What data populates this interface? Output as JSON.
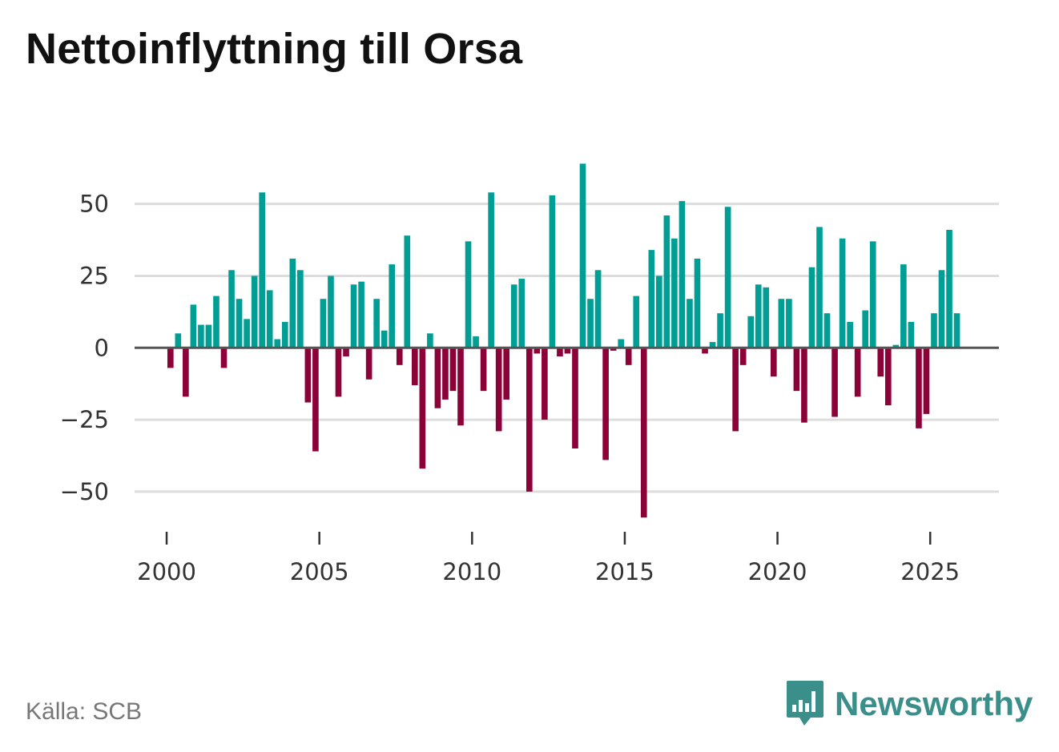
{
  "title": "Nettoinflyttning till Orsa",
  "source": "Källa: SCB",
  "brand": {
    "name": "Newsworthy",
    "icon": "newsworthy-logo-icon"
  },
  "colors": {
    "positive": "#009e94",
    "negative": "#8b0138",
    "grid": "#dddddd",
    "zero": "#555555",
    "brand": "#3a8f8a"
  },
  "chart_data": {
    "type": "bar",
    "title": "Nettoinflyttning till Orsa",
    "xlabel": "",
    "ylabel": "",
    "xlim": [
      1998.95,
      2027.25
    ],
    "ylim": [
      -62,
      68
    ],
    "yticks": [
      -50,
      -25,
      0,
      25,
      50
    ],
    "ytick_labels": [
      "−50",
      "−25",
      "0",
      "25",
      "50"
    ],
    "xticks": [
      2000,
      2005,
      2010,
      2015,
      2020,
      2025
    ],
    "xtick_labels": [
      "2000",
      "2005",
      "2010",
      "2015",
      "2020",
      "2025"
    ],
    "grid": true,
    "bar_width": 0.2,
    "x": [
      2000.125,
      2000.375,
      2000.625,
      2000.875,
      2001.125,
      2001.375,
      2001.625,
      2001.875,
      2002.125,
      2002.375,
      2002.625,
      2002.875,
      2003.125,
      2003.375,
      2003.625,
      2003.875,
      2004.125,
      2004.375,
      2004.625,
      2004.875,
      2005.125,
      2005.375,
      2005.625,
      2005.875,
      2006.125,
      2006.375,
      2006.625,
      2006.875,
      2007.125,
      2007.375,
      2007.625,
      2007.875,
      2008.125,
      2008.375,
      2008.625,
      2008.875,
      2009.125,
      2009.375,
      2009.625,
      2009.875,
      2010.125,
      2010.375,
      2010.625,
      2010.875,
      2011.125,
      2011.375,
      2011.625,
      2011.875,
      2012.125,
      2012.375,
      2012.625,
      2012.875,
      2013.125,
      2013.375,
      2013.625,
      2013.875,
      2014.125,
      2014.375,
      2014.625,
      2014.875,
      2015.125,
      2015.375,
      2015.625,
      2015.875,
      2016.125,
      2016.375,
      2016.625,
      2016.875,
      2017.125,
      2017.375,
      2017.625,
      2017.875,
      2018.125,
      2018.375,
      2018.625,
      2018.875,
      2019.125,
      2019.375,
      2019.625,
      2019.875,
      2020.125,
      2020.375,
      2020.625,
      2020.875,
      2021.125,
      2021.375,
      2021.625,
      2021.875,
      2022.125,
      2022.375,
      2022.625,
      2022.875,
      2023.125,
      2023.375,
      2023.625,
      2023.875,
      2024.125,
      2024.375,
      2024.625,
      2024.875,
      2025.125,
      2025.375,
      2025.625,
      2025.875
    ],
    "values": [
      -7,
      5,
      -17,
      15,
      8,
      8,
      18,
      -7,
      27,
      17,
      10,
      25,
      54,
      20,
      3,
      9,
      31,
      27,
      -19,
      -36,
      17,
      25,
      -17,
      -3,
      22,
      23,
      -11,
      17,
      6,
      29,
      -6,
      39,
      -13,
      -42,
      5,
      -21,
      -18,
      -15,
      -27,
      37,
      4,
      -15,
      54,
      -29,
      -18,
      22,
      24,
      -50,
      -2,
      -25,
      53,
      -3,
      -2,
      -35,
      64,
      17,
      27,
      -39,
      -1,
      3,
      -6,
      18,
      -59,
      34,
      25,
      46,
      38,
      51,
      17,
      31,
      -2,
      2,
      12,
      49,
      -29,
      -6,
      11,
      22,
      21,
      -10,
      17,
      17,
      -15,
      -26,
      28,
      42,
      12,
      -24,
      38,
      9,
      -17,
      13,
      37,
      -10,
      -20,
      1,
      29,
      9,
      -28,
      -23,
      12,
      27,
      41,
      12
    ]
  }
}
